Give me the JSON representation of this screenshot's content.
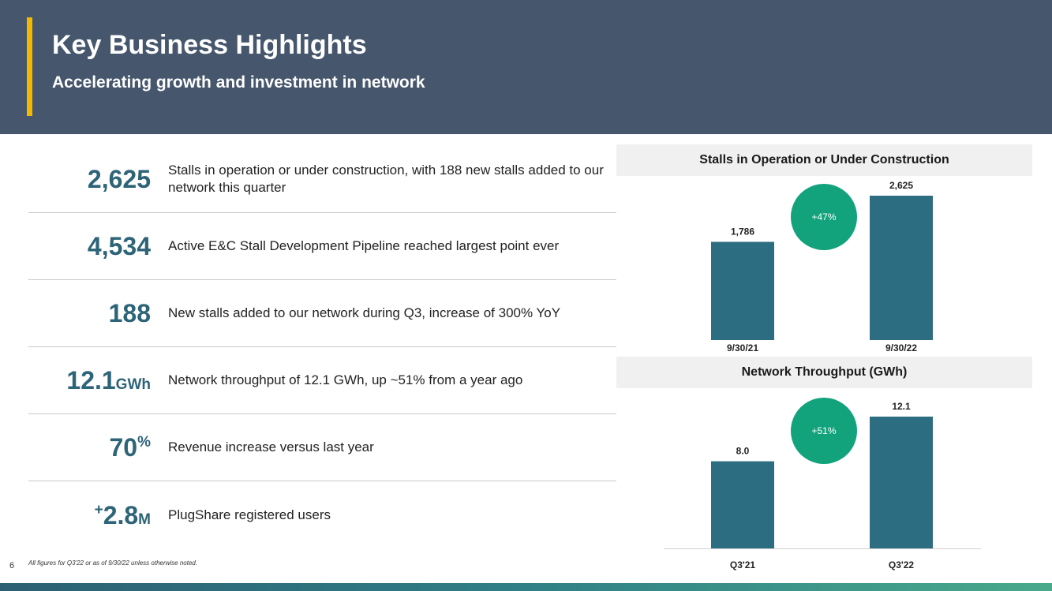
{
  "header": {
    "title": "Key Business Highlights",
    "subtitle": "Accelerating growth and investment in network"
  },
  "kpis": [
    {
      "value": "2,625",
      "unit": "",
      "prefix": "",
      "text": "Stalls in operation or under construction, with 188 new stalls added to our network this quarter"
    },
    {
      "value": "4,534",
      "unit": "",
      "prefix": "",
      "text": "Active E&C Stall Development Pipeline reached largest point ever"
    },
    {
      "value": "188",
      "unit": "",
      "prefix": "",
      "text": "New stalls added to our network during Q3, increase of 300% YoY"
    },
    {
      "value": "12.1",
      "unit": "GWh",
      "prefix": "",
      "text": "Network throughput of 12.1 GWh, up ~51% from a year ago"
    },
    {
      "value": "70",
      "unit": "%",
      "prefix": "",
      "text": "Revenue increase versus last year"
    },
    {
      "value": "2.8",
      "unit": "M",
      "prefix": "+",
      "text": "PlugShare registered users"
    }
  ],
  "chart_data": [
    {
      "type": "bar",
      "title": "Stalls in Operation or Under Construction",
      "categories": [
        "9/30/21",
        "9/30/22"
      ],
      "values": [
        1786,
        2625
      ],
      "value_labels": [
        "1,786",
        "2,625"
      ],
      "growth_badge": "+47%",
      "ylim": [
        0,
        2625
      ],
      "grid": false,
      "legend": "none",
      "bar_color": "#2d6d82",
      "badge_color": "#13a37c"
    },
    {
      "type": "bar",
      "title": "Network Throughput (GWh)",
      "categories": [
        "Q3'21",
        "Q3'22"
      ],
      "values": [
        8.0,
        12.1
      ],
      "value_labels": [
        "8.0",
        "12.1"
      ],
      "growth_badge": "+51%",
      "ylim": [
        0,
        12.1
      ],
      "grid": false,
      "legend": "none",
      "bar_color": "#2d6d82",
      "badge_color": "#13a37c"
    }
  ],
  "footer": {
    "footnote": "All figures for Q3'22 or as of 9/30/22 unless otherwise noted.",
    "page_number": "6"
  }
}
